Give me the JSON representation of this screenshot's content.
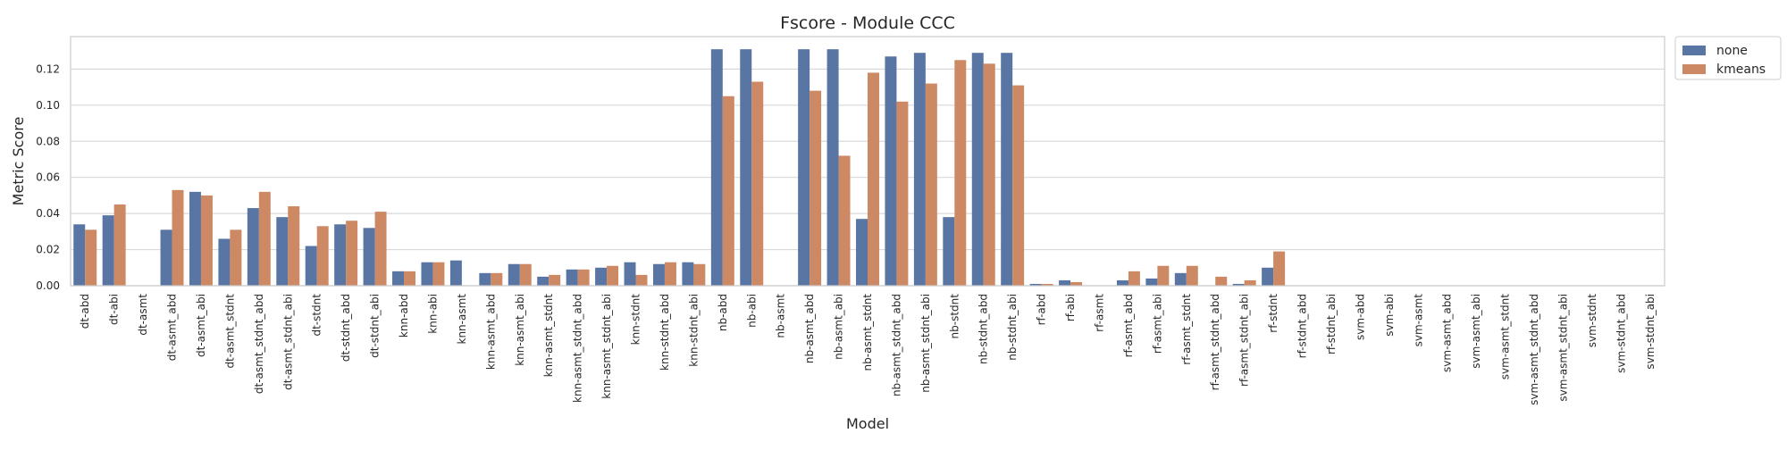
{
  "chart_data": {
    "type": "bar",
    "title": "Fscore - Module CCC",
    "xlabel": "Model",
    "ylabel": "Metric Score",
    "ylim": [
      0,
      0.138
    ],
    "yticks": [
      0.0,
      0.02,
      0.04,
      0.06,
      0.08,
      0.1,
      0.12
    ],
    "ytick_labels": [
      "0.00",
      "0.02",
      "0.04",
      "0.06",
      "0.08",
      "0.10",
      "0.12"
    ],
    "grid": true,
    "legend_position": "outside-top-right",
    "categories": [
      "dt-abd",
      "dt-abi",
      "dt-asmt",
      "dt-asmt_abd",
      "dt-asmt_abi",
      "dt-asmt_stdnt",
      "dt-asmt_stdnt_abd",
      "dt-asmt_stdnt_abi",
      "dt-stdnt",
      "dt-stdnt_abd",
      "dt-stdnt_abi",
      "knn-abd",
      "knn-abi",
      "knn-asmt",
      "knn-asmt_abd",
      "knn-asmt_abi",
      "knn-asmt_stdnt",
      "knn-asmt_stdnt_abd",
      "knn-asmt_stdnt_abi",
      "knn-stdnt",
      "knn-stdnt_abd",
      "knn-stdnt_abi",
      "nb-abd",
      "nb-abi",
      "nb-asmt",
      "nb-asmt_abd",
      "nb-asmt_abi",
      "nb-asmt_stdnt",
      "nb-asmt_stdnt_abd",
      "nb-asmt_stdnt_abi",
      "nb-stdnt",
      "nb-stdnt_abd",
      "nb-stdnt_abi",
      "rf-abd",
      "rf-abi",
      "rf-asmt",
      "rf-asmt_abd",
      "rf-asmt_abi",
      "rf-asmt_stdnt",
      "rf-asmt_stdnt_abd",
      "rf-asmt_stdnt_abi",
      "rf-stdnt",
      "rf-stdnt_abd",
      "rf-stdnt_abi",
      "svm-abd",
      "svm-abi",
      "svm-asmt",
      "svm-asmt_abd",
      "svm-asmt_abi",
      "svm-asmt_stdnt",
      "svm-asmt_stdnt_abd",
      "svm-asmt_stdnt_abi",
      "svm-stdnt",
      "svm-stdnt_abd",
      "svm-stdnt_abi"
    ],
    "series": [
      {
        "name": "none",
        "color": "#5875a4",
        "values": [
          0.034,
          0.039,
          0.0,
          0.031,
          0.052,
          0.026,
          0.043,
          0.038,
          0.022,
          0.034,
          0.032,
          0.008,
          0.013,
          0.014,
          0.007,
          0.012,
          0.005,
          0.009,
          0.01,
          0.013,
          0.012,
          0.013,
          0.131,
          0.131,
          0.0,
          0.131,
          0.131,
          0.037,
          0.127,
          0.129,
          0.038,
          0.129,
          0.129,
          0.001,
          0.003,
          0.0,
          0.003,
          0.004,
          0.007,
          0.0,
          0.001,
          0.01,
          0.0,
          0.0,
          0.0,
          0.0,
          0.0,
          0.0,
          0.0,
          0.0,
          0.0,
          0.0,
          0.0,
          0.0,
          0.0
        ]
      },
      {
        "name": "kmeans",
        "color": "#cc8963",
        "values": [
          0.031,
          0.045,
          0.0,
          0.053,
          0.05,
          0.031,
          0.052,
          0.044,
          0.033,
          0.036,
          0.041,
          0.008,
          0.013,
          0.0,
          0.007,
          0.012,
          0.006,
          0.009,
          0.011,
          0.006,
          0.013,
          0.012,
          0.105,
          0.113,
          0.0,
          0.108,
          0.072,
          0.118,
          0.102,
          0.112,
          0.125,
          0.123,
          0.111,
          0.001,
          0.002,
          0.0,
          0.008,
          0.011,
          0.011,
          0.005,
          0.003,
          0.019,
          0.0,
          0.0,
          0.0,
          0.0,
          0.0,
          0.0,
          0.0,
          0.0,
          0.0,
          0.0,
          0.0,
          0.0,
          0.0
        ]
      }
    ]
  }
}
